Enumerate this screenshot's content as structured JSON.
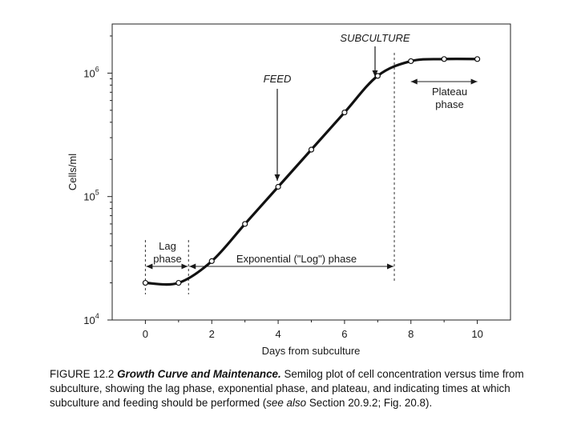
{
  "chart_data": {
    "type": "line",
    "title": "",
    "xlabel": "Days from subculture",
    "ylabel": "Cells/ml",
    "xlim": [
      -1,
      11
    ],
    "ylim": [
      10000,
      2500000
    ],
    "yscale": "log",
    "x_ticks": [
      0,
      2,
      4,
      6,
      8,
      10
    ],
    "x_tick_labels": [
      "0",
      "2",
      "4",
      "6",
      "8",
      "10"
    ],
    "y_ticks": [
      10000,
      100000,
      1000000
    ],
    "y_tick_labels": [
      {
        "base": "10",
        "exp": "4"
      },
      {
        "base": "10",
        "exp": "5"
      },
      {
        "base": "10",
        "exp": "6"
      }
    ],
    "grid": false,
    "series": [
      {
        "x": [
          0,
          1,
          2,
          3,
          4,
          5,
          6,
          7,
          8,
          9,
          10
        ],
        "y": [
          20000,
          20000,
          30000,
          60000,
          120000,
          240000,
          480000,
          950000,
          1250000,
          1300000,
          1300000
        ]
      }
    ],
    "annotations": {
      "feed": {
        "label": "FEED",
        "x": 4
      },
      "subculture": {
        "label": "SUBCULTURE",
        "x": 7
      },
      "lag_phase": {
        "label_lines": [
          "Lag",
          "phase"
        ],
        "x_start": 0,
        "x_end": 1.3
      },
      "exponential_phase": {
        "label": "Exponential (\"Log\") phase",
        "x_start": 1.3,
        "x_end": 7.5
      },
      "plateau_phase": {
        "label_lines": [
          "Plateau",
          "phase"
        ],
        "x_start": 8,
        "x_end": 10
      }
    }
  },
  "caption": {
    "prefix": "FIGURE 12.2 ",
    "title": "Growth Curve and Maintenance.",
    "text_1": " Semilog plot of cell concentration versus time from subculture, showing the lag phase, exponential phase, and plateau, and indicating times at which subculture and feeding should be performed (",
    "see_also": "see also",
    "text_2": " Section 20.9.2; Fig. 20.8)."
  }
}
